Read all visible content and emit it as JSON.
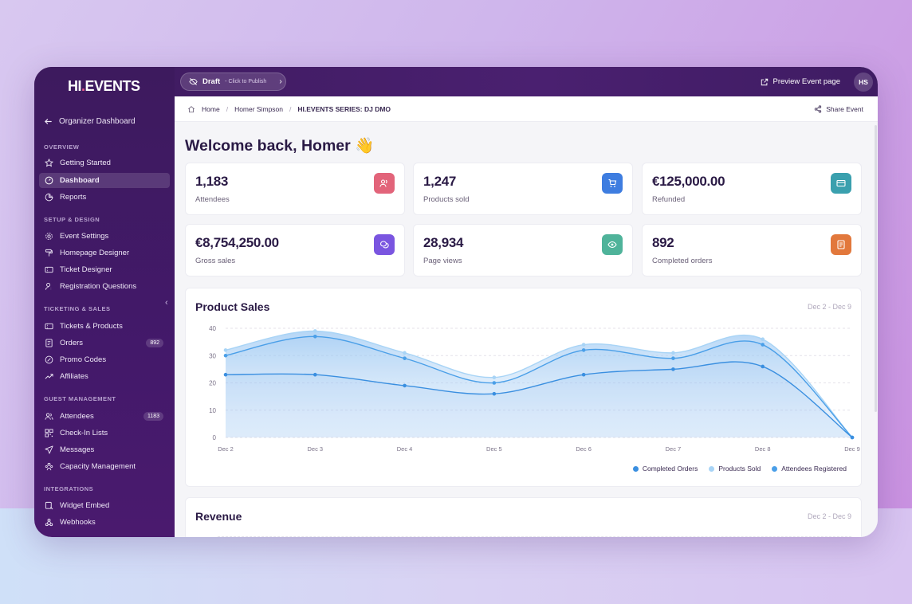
{
  "brand": {
    "logo_left": "HI",
    "logo_dot": ".",
    "logo_right": "EVENTS"
  },
  "topbar": {
    "draft_label": "Draft",
    "draft_sub": "- Click to Publish",
    "preview_label": "Preview Event page",
    "avatar_initials": "HS"
  },
  "sidebar": {
    "back_label": "Organizer Dashboard",
    "sections": {
      "overview": "OVERVIEW",
      "setup": "SETUP & DESIGN",
      "ticketing": "TICKETING & SALES",
      "guests": "GUEST MANAGEMENT",
      "integrations": "INTEGRATIONS"
    },
    "items": {
      "getting_started": "Getting Started",
      "dashboard": "Dashboard",
      "reports": "Reports",
      "event_settings": "Event Settings",
      "homepage_designer": "Homepage Designer",
      "ticket_designer": "Ticket Designer",
      "registration_questions": "Registration Questions",
      "tickets_products": "Tickets & Products",
      "orders": "Orders",
      "orders_badge": "892",
      "promo_codes": "Promo Codes",
      "affiliates": "Affiliates",
      "attendees": "Attendees",
      "attendees_badge": "1183",
      "checkin_lists": "Check-In Lists",
      "messages": "Messages",
      "capacity": "Capacity Management",
      "widget_embed": "Widget Embed",
      "webhooks": "Webhooks"
    }
  },
  "breadcrumb": {
    "home": "Home",
    "organizer": "Homer Simpson",
    "event": "HI.EVENTS SERIES: DJ DMO"
  },
  "share_label": "Share Event",
  "welcome": "Welcome back, Homer 👋",
  "stats": [
    {
      "value": "1,183",
      "label": "Attendees",
      "color": "#e2647a"
    },
    {
      "value": "1,247",
      "label": "Products sold",
      "color": "#3e7de0"
    },
    {
      "value": "€125,000.00",
      "label": "Refunded",
      "color": "#3aa0ae"
    },
    {
      "value": "€8,754,250.00",
      "label": "Gross sales",
      "color": "#7a55e0"
    },
    {
      "value": "28,934",
      "label": "Page views",
      "color": "#4fb39a"
    },
    {
      "value": "892",
      "label": "Completed orders",
      "color": "#e2783c"
    }
  ],
  "product_sales": {
    "title": "Product Sales",
    "range": "Dec 2 - Dec 9"
  },
  "revenue": {
    "title": "Revenue",
    "range": "Dec 2 - Dec 9"
  },
  "chart_data": {
    "type": "area",
    "x": [
      "Dec 2",
      "Dec 3",
      "Dec 4",
      "Dec 5",
      "Dec 6",
      "Dec 7",
      "Dec 8",
      "Dec 9"
    ],
    "ylim": [
      0,
      40
    ],
    "yticks": [
      0,
      10,
      20,
      30,
      40
    ],
    "grid": true,
    "legend_position": "bottom-right",
    "series": [
      {
        "name": "Completed Orders",
        "color": "#3a8fe0",
        "values": [
          23,
          23,
          19,
          16,
          23,
          25,
          26,
          0
        ]
      },
      {
        "name": "Products Sold",
        "color": "#a8d4f6",
        "values": [
          32,
          39,
          31,
          22,
          34,
          31,
          36,
          0
        ]
      },
      {
        "name": "Attendees Registered",
        "color": "#4a9fe8",
        "values": [
          30,
          37,
          29,
          20,
          32,
          29,
          34,
          0
        ]
      }
    ]
  }
}
